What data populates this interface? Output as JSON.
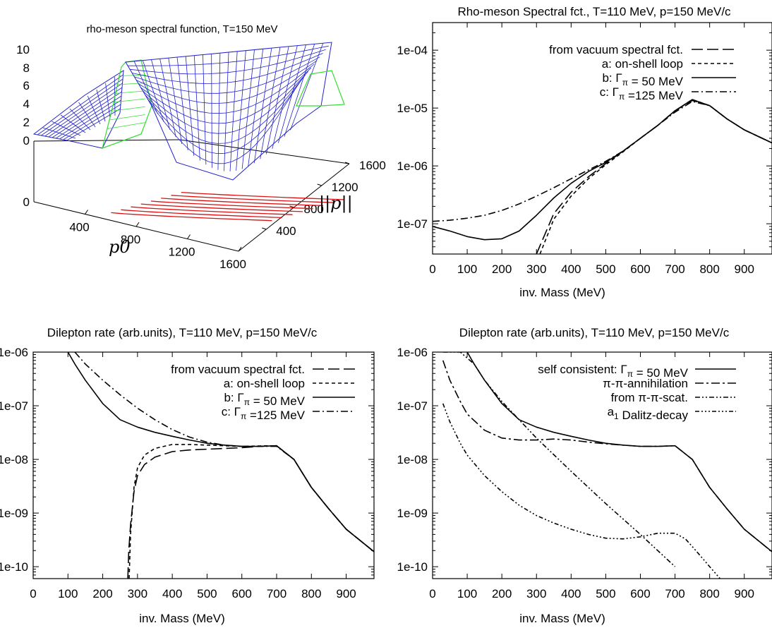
{
  "chart_data": [
    {
      "id": "surface",
      "type": "surface3d",
      "title": "rho-meson spectral function, T=150 MeV",
      "xlabel": "p0",
      "ylabel": "|p|",
      "ztick_labels": [
        "0",
        "2",
        "4",
        "6",
        "8",
        "10"
      ],
      "floor_tick_label": "0",
      "x_tick_labels": [
        "400",
        "800",
        "1200",
        "1600"
      ],
      "y_tick_labels": [
        "400",
        "800",
        "1200",
        "1600"
      ],
      "colors": {
        "surface": "#2222cc",
        "surface_edge": "#33dd33",
        "contours": "#dd1111"
      }
    },
    {
      "id": "spectral",
      "type": "line",
      "title": "Rho-meson Spectral fct., T=110 MeV, p=150 MeV/c",
      "xlabel": "inv. Mass (MeV)",
      "ylabel": "",
      "yscale": "log",
      "xlim": [
        0,
        980
      ],
      "ylim": [
        3e-08,
        0.0003
      ],
      "xticks": [
        0,
        100,
        200,
        300,
        400,
        500,
        600,
        700,
        800,
        900
      ],
      "yticks": [
        1e-07,
        1e-06,
        1e-05,
        0.0001
      ],
      "ytick_labels": [
        "1e-07",
        "1e-06",
        "1e-05",
        "1e-04"
      ],
      "legend_position": "top-right",
      "series": [
        {
          "legend": [
            "from vacuum spectral fct."
          ],
          "dash": "16,6",
          "x": [
            300,
            350,
            400,
            450,
            500,
            550,
            600,
            650,
            700,
            750,
            800,
            850,
            900,
            980
          ],
          "y": [
            3e-08,
            1.5e-07,
            3.5e-07,
            6.5e-07,
            1.1e-06,
            1.8e-06,
            3e-06,
            5e-06,
            9e-06,
            1.35e-05,
            1.1e-05,
            6.5e-06,
            4.2e-06,
            2.5e-06
          ]
        },
        {
          "legend": [
            "a:  on-shell loop"
          ],
          "dash": "5,4",
          "x": [
            310,
            350,
            400,
            450,
            500,
            550,
            600,
            650,
            700,
            750,
            800,
            850,
            900,
            980
          ],
          "y": [
            3e-08,
            1.2e-07,
            3e-07,
            6e-07,
            1.05e-06,
            1.75e-06,
            3e-06,
            5e-06,
            9e-06,
            1.4e-05,
            1.1e-05,
            6.5e-06,
            4.2e-06,
            2.5e-06
          ]
        },
        {
          "legend": [
            "b: ",
            "Γ",
            "π",
            " =  50 MeV"
          ],
          "dash": "",
          "x": [
            0,
            50,
            100,
            150,
            200,
            250,
            300,
            350,
            400,
            450,
            500,
            550,
            600,
            650,
            700,
            750,
            800,
            850,
            900,
            980
          ],
          "y": [
            9e-08,
            7.5e-08,
            6e-08,
            5.3e-08,
            5.5e-08,
            7.5e-08,
            1.4e-07,
            2.8e-07,
            5e-07,
            8e-07,
            1.15e-06,
            1.8e-06,
            3e-06,
            5e-06,
            9e-06,
            1.4e-05,
            1.1e-05,
            6.5e-06,
            4.2e-06,
            2.5e-06
          ]
        },
        {
          "legend": [
            "c: ",
            "Γ",
            "π",
            " =125 MeV"
          ],
          "dash": "10,4,2,4",
          "x": [
            0,
            50,
            100,
            150,
            200,
            250,
            300,
            350,
            400,
            450,
            500,
            550,
            600,
            650,
            700,
            750,
            800,
            850,
            900,
            980
          ],
          "y": [
            1.1e-07,
            1.15e-07,
            1.25e-07,
            1.4e-07,
            1.7e-07,
            2.2e-07,
            3e-07,
            4.2e-07,
            6e-07,
            8.5e-07,
            1.2e-06,
            1.8e-06,
            3e-06,
            5e-06,
            8.5e-06,
            1.3e-05,
            1.1e-05,
            6.5e-06,
            4.2e-06,
            2.5e-06
          ]
        }
      ]
    },
    {
      "id": "dilepton_left",
      "type": "line",
      "title": "Dilepton rate (arb.units), T=110 MeV, p=150 MeV/c",
      "xlabel": "inv. Mass (MeV)",
      "ylabel": "",
      "yscale": "log",
      "xlim": [
        0,
        980
      ],
      "ylim": [
        6e-11,
        1e-06
      ],
      "xticks": [
        0,
        100,
        200,
        300,
        400,
        500,
        600,
        700,
        800,
        900
      ],
      "yticks": [
        1e-10,
        1e-09,
        1e-08,
        1e-07,
        1e-06
      ],
      "ytick_labels": [
        "1e-10",
        "1e-09",
        "1e-08",
        "1e-07",
        "1e-06"
      ],
      "legend_position": "top-right",
      "series": [
        {
          "legend": [
            "from vacuum spectral fct."
          ],
          "dash": "16,6",
          "x": [
            272,
            275,
            280,
            290,
            300,
            320,
            350,
            400,
            450,
            500,
            550,
            600,
            650,
            700,
            750,
            800,
            850,
            900,
            980
          ],
          "y": [
            6e-11,
            2e-10,
            6e-10,
            2.5e-09,
            5e-09,
            8e-09,
            1.1e-08,
            1.4e-08,
            1.5e-08,
            1.55e-08,
            1.6e-08,
            1.65e-08,
            1.75e-08,
            1.8e-08,
            1e-08,
            3e-09,
            1.2e-09,
            5e-10,
            1.9e-10
          ]
        },
        {
          "legend": [
            "a:  on-shell loop"
          ],
          "dash": "5,4",
          "x": [
            276,
            280,
            290,
            300,
            320,
            350,
            400,
            450,
            500,
            550,
            600,
            650,
            700,
            750,
            800,
            850,
            900,
            980
          ],
          "y": [
            6e-11,
            4e-10,
            3e-09,
            7e-09,
            1.2e-08,
            1.6e-08,
            1.9e-08,
            1.9e-08,
            1.85e-08,
            1.8e-08,
            1.75e-08,
            1.78e-08,
            1.8e-08,
            1e-08,
            3e-09,
            1.2e-09,
            5e-10,
            1.9e-10
          ]
        },
        {
          "legend": [
            "b: ",
            "Γ",
            "π",
            " =  50 MeV"
          ],
          "dash": "",
          "x": [
            100,
            120,
            150,
            200,
            250,
            300,
            350,
            400,
            450,
            500,
            550,
            600,
            650,
            700,
            750,
            800,
            850,
            900,
            980
          ],
          "y": [
            1e-06,
            6e-07,
            3e-07,
            1.1e-07,
            5.5e-08,
            4e-08,
            3.2e-08,
            2.7e-08,
            2.3e-08,
            2e-08,
            1.85e-08,
            1.75e-08,
            1.75e-08,
            1.8e-08,
            1e-08,
            3e-09,
            1.2e-09,
            5e-10,
            1.9e-10
          ]
        },
        {
          "legend": [
            "c: ",
            "Γ",
            "π",
            " =125 MeV"
          ],
          "dash": "10,4,2,4",
          "x": [
            120,
            150,
            200,
            250,
            300,
            350,
            400,
            450,
            500,
            550,
            600,
            650,
            700,
            750,
            800,
            850,
            900,
            980
          ],
          "y": [
            1e-06,
            6e-07,
            3e-07,
            1.6e-07,
            9e-08,
            5.5e-08,
            3.6e-08,
            2.6e-08,
            2.1e-08,
            1.85e-08,
            1.75e-08,
            1.75e-08,
            1.75e-08,
            1e-08,
            3e-09,
            1.2e-09,
            5e-10,
            1.9e-10
          ]
        }
      ]
    },
    {
      "id": "dilepton_right",
      "type": "line",
      "title": "Dilepton rate (arb.units), T=110 MeV, p=150 MeV/c",
      "xlabel": "inv. Mass (MeV)",
      "ylabel": "",
      "yscale": "log",
      "xlim": [
        0,
        980
      ],
      "ylim": [
        6e-11,
        1e-06
      ],
      "xticks": [
        0,
        100,
        200,
        300,
        400,
        500,
        600,
        700,
        800,
        900
      ],
      "yticks": [
        1e-10,
        1e-09,
        1e-08,
        1e-07,
        1e-06
      ],
      "ytick_labels": [
        "1e-10",
        "1e-09",
        "1e-08",
        "1e-07",
        "1e-06"
      ],
      "legend_position": "top-right",
      "series": [
        {
          "legend": [
            "self consistent: ",
            "Γ",
            "π",
            " = 50 MeV"
          ],
          "dash": "",
          "x": [
            100,
            120,
            150,
            200,
            250,
            300,
            350,
            400,
            450,
            500,
            550,
            600,
            650,
            700,
            750,
            800,
            850,
            900,
            980
          ],
          "y": [
            1e-06,
            6e-07,
            3e-07,
            1.1e-07,
            5.5e-08,
            4e-08,
            3.2e-08,
            2.7e-08,
            2.3e-08,
            2e-08,
            1.85e-08,
            1.75e-08,
            1.75e-08,
            1.8e-08,
            1e-08,
            3e-09,
            1.2e-09,
            5e-10,
            1.9e-10
          ]
        },
        {
          "legend": [
            "π",
            "-",
            "π",
            "-annihilation"
          ],
          "dash": "12,4,3,4",
          "x": [
            30,
            50,
            80,
            100,
            150,
            200,
            250,
            300,
            350,
            400,
            450,
            500,
            550,
            600,
            650,
            700,
            750,
            800,
            850,
            900,
            980
          ],
          "y": [
            7e-07,
            3e-07,
            1.2e-07,
            7e-08,
            3.5e-08,
            2.5e-08,
            2.3e-08,
            2.3e-08,
            2.4e-08,
            2.3e-08,
            2.1e-08,
            1.95e-08,
            1.85e-08,
            1.75e-08,
            1.75e-08,
            1.8e-08,
            1e-08,
            3e-09,
            1.2e-09,
            5e-10,
            1.9e-10
          ]
        },
        {
          "legend": [
            "from ",
            "π",
            "-",
            "π",
            "-scat."
          ],
          "dash": "7,3,2,3,2,3",
          "x": [
            30,
            80,
            120,
            150,
            200,
            300,
            400,
            500,
            600,
            650,
            700
          ],
          "y": [
            1e-06,
            1e-06,
            6e-07,
            3e-07,
            1.2e-07,
            2.5e-08,
            6e-09,
            1.5e-09,
            4e-10,
            2e-10,
            1e-10
          ]
        },
        {
          "legend": [
            "a",
            "1",
            " Dalitz-decay"
          ],
          "dash": "6,3,2,3,2,3,2,3",
          "x": [
            30,
            50,
            80,
            100,
            150,
            200,
            250,
            300,
            350,
            400,
            450,
            500,
            550,
            600,
            650,
            700,
            730,
            760,
            800,
            830
          ],
          "y": [
            1.1e-07,
            5e-08,
            2e-08,
            1.2e-08,
            5e-09,
            2.5e-09,
            1.4e-09,
            9e-10,
            6.5e-10,
            5e-10,
            4e-10,
            3.4e-10,
            3.3e-10,
            3.6e-10,
            4.2e-10,
            4.2e-10,
            3.3e-10,
            2e-10,
            1e-10,
            6e-11
          ]
        }
      ]
    }
  ]
}
